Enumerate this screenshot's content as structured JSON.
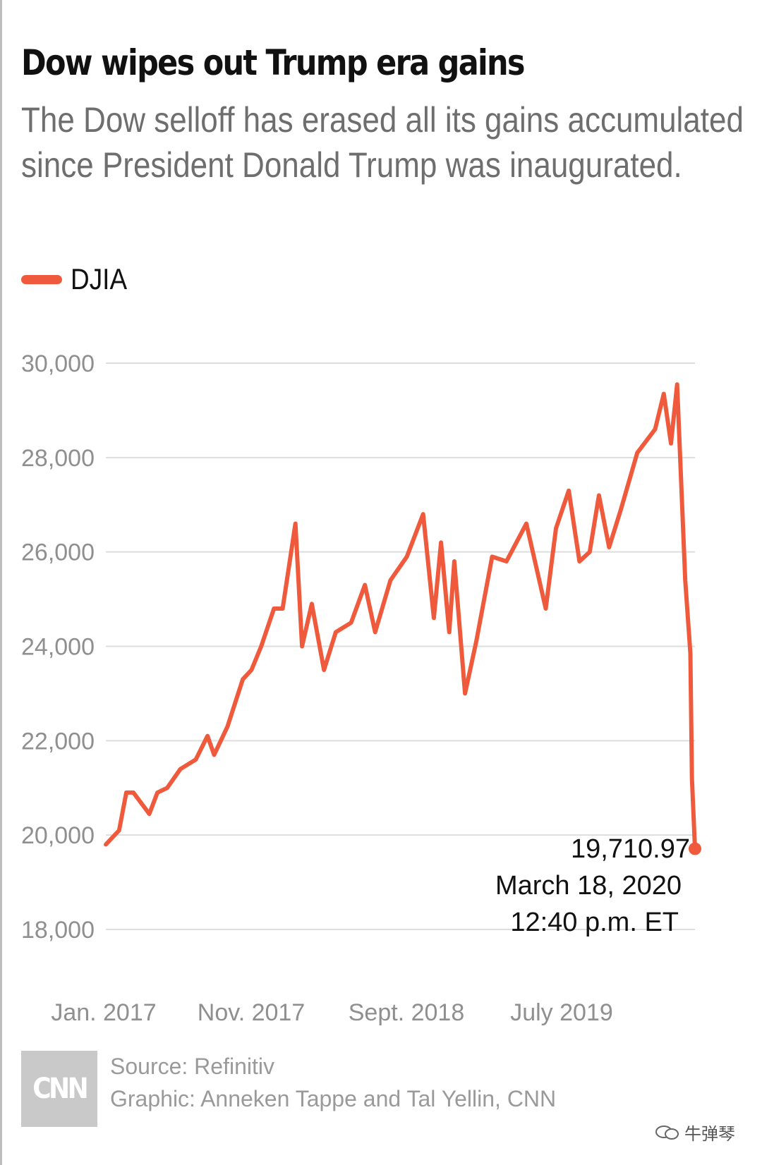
{
  "header": {
    "title": "Dow wipes out Trump era gains",
    "subtitle": "The Dow selloff has erased all its gains accumulated since President Donald Trump was inaugurated."
  },
  "legend": {
    "label": "DJIA",
    "color": "#f05a3c"
  },
  "chart_data": {
    "type": "line",
    "title": "Dow wipes out Trump era gains",
    "subtitle": "The Dow selloff has erased all its gains accumulated since President Donald Trump was inaugurated.",
    "xlabel": "",
    "ylabel": "",
    "ylim": [
      18000,
      30000
    ],
    "yticks": [
      "30,000",
      "28,000",
      "26,000",
      "24,000",
      "22,000",
      "20,000",
      "18,000"
    ],
    "xticks": [
      "Jan. 2017",
      "Nov. 2017",
      "Sept. 2018",
      "July 2019"
    ],
    "grid": true,
    "legend_position": "top-left",
    "series": [
      {
        "name": "DJIA",
        "color": "#f05a3c",
        "x": [
          "2017-01-20",
          "2017-02-15",
          "2017-03-01",
          "2017-03-15",
          "2017-04-15",
          "2017-05-01",
          "2017-05-20",
          "2017-06-15",
          "2017-07-15",
          "2017-08-07",
          "2017-08-20",
          "2017-09-15",
          "2017-10-15",
          "2017-11-01",
          "2017-11-20",
          "2017-12-15",
          "2018-01-01",
          "2018-01-26",
          "2018-02-08",
          "2018-02-27",
          "2018-03-23",
          "2018-04-15",
          "2018-05-15",
          "2018-06-11",
          "2018-07-01",
          "2018-07-31",
          "2018-09-01",
          "2018-10-03",
          "2018-10-24",
          "2018-11-07",
          "2018-11-23",
          "2018-12-03",
          "2018-12-24",
          "2019-01-15",
          "2019-02-15",
          "2019-03-15",
          "2019-04-23",
          "2019-05-31",
          "2019-06-20",
          "2019-07-15",
          "2019-08-05",
          "2019-08-25",
          "2019-09-12",
          "2019-10-02",
          "2019-10-25",
          "2019-11-26",
          "2019-12-31",
          "2020-01-17",
          "2020-01-31",
          "2020-02-12",
          "2020-02-28",
          "2020-03-09",
          "2020-03-12",
          "2020-03-18"
        ],
        "values": [
          19800,
          20100,
          20900,
          20900,
          20450,
          20900,
          21000,
          21400,
          21600,
          22100,
          21700,
          22300,
          23300,
          23500,
          24000,
          24800,
          24800,
          26600,
          24000,
          24900,
          23500,
          24300,
          24500,
          25300,
          24300,
          25400,
          25900,
          26800,
          24600,
          26200,
          24300,
          25800,
          23000,
          24100,
          25900,
          25800,
          26600,
          24800,
          26500,
          27300,
          25800,
          26000,
          27200,
          26100,
          26900,
          28100,
          28600,
          29350,
          28300,
          29550,
          25400,
          23850,
          21200,
          19710.97
        ]
      }
    ]
  },
  "annotation": {
    "value": "19,710.97",
    "date": "March 18, 2020",
    "time": "12:40 p.m. ET"
  },
  "footer": {
    "logo": "CNN",
    "source": "Source: Refinitiv",
    "credit": "Graphic: Anneken Tappe and Tal Yellin, CNN"
  },
  "watermark": {
    "text": "牛弹琴"
  }
}
